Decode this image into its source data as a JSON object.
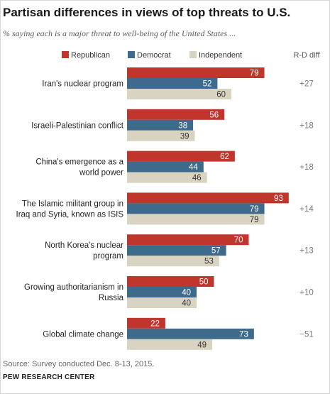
{
  "title": "Partisan differences  in views of top threats to U.S.",
  "subtitle": "% saying each is a major threat to well-being of the United States ...",
  "diff_header": "R-D diff",
  "source": "Source: Survey conducted Dec. 8-13, 2015.",
  "org": "PEW RESEARCH CENTER",
  "colors": {
    "Republican": "#c0362c",
    "Democrat": "#3e6a8c",
    "Independent": "#d9d3c2"
  },
  "chart_data": {
    "type": "bar",
    "orientation": "horizontal",
    "categories": [
      [
        "Iran's nuclear program"
      ],
      [
        "Israeli-Palestinian conflict"
      ],
      [
        "China's emergence as a",
        "world power"
      ],
      [
        "The  Islamic militant group in",
        "Iraq and Syria, known as ISIS"
      ],
      [
        "North Korea's nuclear",
        "program"
      ],
      [
        "Growing authoritarianism in",
        "Russia"
      ],
      [
        "Global climate change"
      ]
    ],
    "series": [
      {
        "name": "Republican",
        "values": [
          79,
          56,
          62,
          93,
          70,
          50,
          22
        ]
      },
      {
        "name": "Democrat",
        "values": [
          52,
          38,
          44,
          79,
          57,
          40,
          73
        ]
      },
      {
        "name": "Independent",
        "values": [
          60,
          39,
          46,
          79,
          53,
          40,
          49
        ]
      }
    ],
    "diff": [
      "+27",
      "+18",
      "+18",
      "+14",
      "+13",
      "+10",
      "−51"
    ],
    "xlim": [
      0,
      100
    ],
    "legend_position": "top"
  }
}
